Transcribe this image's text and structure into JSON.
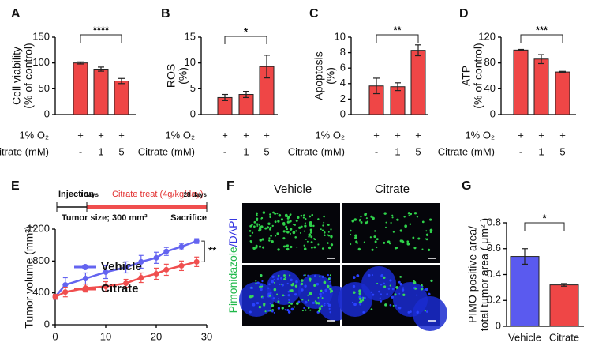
{
  "chart_data": [
    {
      "type": "bar",
      "panel": "A",
      "ylabel": [
        "Cell viability",
        "(% of control)"
      ],
      "values": [
        100,
        88,
        65
      ],
      "errors": [
        2,
        4,
        5
      ],
      "color": "#ef4646",
      "ylim": [
        0,
        150
      ],
      "yticks": [
        0,
        50,
        100,
        150
      ],
      "significance": "****",
      "conditions": [
        {
          "label": "1% O₂",
          "values": [
            "+",
            "+",
            "+"
          ]
        },
        {
          "label": "Citrate (mM)",
          "values": [
            "-",
            "1",
            "5"
          ]
        }
      ]
    },
    {
      "type": "bar",
      "panel": "B",
      "ylabel": [
        "ROS",
        "(%)"
      ],
      "values": [
        3.3,
        3.9,
        9.3
      ],
      "errors": [
        0.6,
        0.6,
        2.2
      ],
      "color": "#ef4646",
      "ylim": [
        0,
        15
      ],
      "yticks": [
        0,
        5,
        10,
        15
      ],
      "significance": "*",
      "conditions": [
        {
          "label": "1% O₂",
          "values": [
            "+",
            "+",
            "+"
          ]
        },
        {
          "label": "Citrate (mM)",
          "values": [
            "-",
            "1",
            "5"
          ]
        }
      ]
    },
    {
      "type": "bar",
      "panel": "C",
      "ylabel": [
        "Apoptosis",
        "(%)"
      ],
      "values": [
        3.7,
        3.6,
        8.3
      ],
      "errors": [
        1.0,
        0.5,
        0.7
      ],
      "color": "#ef4646",
      "ylim": [
        0,
        10
      ],
      "yticks": [
        0,
        2,
        4,
        6,
        8,
        10
      ],
      "significance": "**",
      "conditions": [
        {
          "label": "1% O₂",
          "values": [
            "+",
            "+",
            "+"
          ]
        },
        {
          "label": "Citrate (mM)",
          "values": [
            "-",
            "1",
            "5"
          ]
        }
      ]
    },
    {
      "type": "bar",
      "panel": "D",
      "ylabel": [
        "ATP",
        "(% of control)"
      ],
      "values": [
        100,
        86,
        66
      ],
      "errors": [
        1,
        7,
        1
      ],
      "color": "#ef4646",
      "ylim": [
        0,
        120
      ],
      "yticks": [
        0,
        40,
        80,
        120
      ],
      "significance": "***",
      "conditions": [
        {
          "label": "1% O₂",
          "values": [
            "+",
            "+",
            "+"
          ]
        },
        {
          "label": "Citrate (mM)",
          "values": [
            "-",
            "1",
            "5"
          ]
        }
      ]
    },
    {
      "type": "line",
      "panel": "E",
      "ylabel": [
        "Tumor volume (mm³)"
      ],
      "x": [
        0,
        2,
        6,
        10,
        14,
        17,
        20,
        22,
        25,
        28
      ],
      "series": [
        {
          "name": "Vehicle",
          "color": "#6464f0",
          "values": [
            350,
            500,
            580,
            660,
            720,
            790,
            840,
            920,
            980,
            1050
          ],
          "errors": [
            30,
            90,
            70,
            80,
            70,
            80,
            70,
            50,
            40,
            30
          ]
        },
        {
          "name": "Citrate",
          "color": "#f04e4e",
          "values": [
            350,
            410,
            460,
            480,
            520,
            590,
            640,
            690,
            740,
            790
          ],
          "errors": [
            30,
            60,
            50,
            60,
            50,
            60,
            70,
            70,
            60,
            60
          ]
        }
      ],
      "xlim": [
        0,
        30
      ],
      "xticks": [
        0,
        10,
        20,
        30
      ],
      "ylim": [
        0,
        1200
      ],
      "yticks": [
        0,
        400,
        800,
        1200
      ],
      "legend": "lower left",
      "significance": "**",
      "timeline": {
        "start": "Injection",
        "day0": "0 days",
        "treatment": "Citrate treat (4g/kg/day)",
        "end_day": "28 days",
        "start_note": "Tumor size; 300 mm³",
        "end_note": "Sacrifice"
      }
    },
    {
      "type": "bar",
      "panel": "G",
      "ylabel": [
        "PIMO positive area/",
        "total tumor area ( μm² )"
      ],
      "categories": [
        "Vehicle",
        "Citrate"
      ],
      "values": [
        0.54,
        0.32
      ],
      "errors": [
        0.06,
        0.01
      ],
      "colors": [
        "#5a5aef",
        "#ef4646"
      ],
      "ylim": [
        0,
        0.8
      ],
      "yticks": [
        0,
        0.2,
        0.4,
        0.6,
        0.8
      ],
      "significance": "*"
    }
  ],
  "image_panel": {
    "panel": "F",
    "columns": [
      "Vehicle",
      "Citrate"
    ],
    "stain_labels": [
      "Pimonidazole",
      "/DAPI"
    ]
  }
}
